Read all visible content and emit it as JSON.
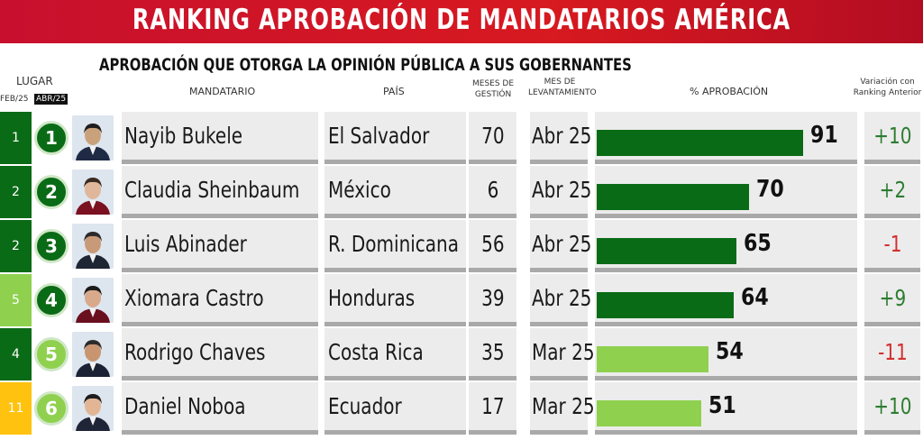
{
  "title": "RANKING APROBACIÓN DE MANDATARIOS AMÉRICA",
  "subtitle": "APROBACIÓN QUE OTORGA LA OPINIÓN PÚBLICA A SUS GOBERNANTES",
  "headers": {
    "lugar": "LUGAR",
    "prev_period": "FEB/25",
    "curr_period": "ABR/25",
    "mandatario": "MANDATARIO",
    "pais": "PAÍS",
    "meses_line1": "MESES DE",
    "meses_line2": "GESTIÓN",
    "mes_line1": "MES DE",
    "mes_line2": "LEVANTAMIENTO",
    "aprobacion": "% APROBACIÓN",
    "variacion_line1": "Variación con",
    "variacion_line2": "Ranking Anterior"
  },
  "colors": {
    "banner_red": "#c8102e",
    "dark_green": "#0a6b16",
    "light_green": "#8fd14f",
    "yellow": "#ffc20e",
    "positive": "#2e7d32",
    "negative": "#d32f2f"
  },
  "chart_data": {
    "type": "table",
    "value_max": 100,
    "rows": [
      {
        "prev_rank": "1",
        "rank": "1",
        "name": "Nayib Bukele",
        "country": "El Salvador",
        "months": "70",
        "survey": "Abr 25",
        "approval": 91,
        "approval_label": "91",
        "variation": "+10",
        "bar_color": "#0a6b16",
        "prev_color": "#0a6b16",
        "circle_color": "#0a6b16"
      },
      {
        "prev_rank": "2",
        "rank": "2",
        "name": "Claudia Sheinbaum",
        "country": "México",
        "months": "6",
        "survey": "Abr 25",
        "approval": 70,
        "approval_label": "70",
        "variation": "+2",
        "bar_color": "#0a6b16",
        "prev_color": "#0a6b16",
        "circle_color": "#0a6b16"
      },
      {
        "prev_rank": "2",
        "rank": "3",
        "name": "Luis Abinader",
        "country": "R. Dominicana",
        "months": "56",
        "survey": "Abr 25",
        "approval": 65,
        "approval_label": "65",
        "variation": "-1",
        "bar_color": "#0a6b16",
        "prev_color": "#0a6b16",
        "circle_color": "#0a6b16"
      },
      {
        "prev_rank": "5",
        "rank": "4",
        "name": "Xiomara Castro",
        "country": "Honduras",
        "months": "39",
        "survey": "Abr 25",
        "approval": 64,
        "approval_label": "64",
        "variation": "+9",
        "bar_color": "#0a6b16",
        "prev_color": "#8fd14f",
        "circle_color": "#0a6b16"
      },
      {
        "prev_rank": "4",
        "rank": "5",
        "name": "Rodrigo Chaves",
        "country": "Costa Rica",
        "months": "35",
        "survey": "Mar 25",
        "approval": 54,
        "approval_label": "54",
        "variation": "-11",
        "bar_color": "#8fd14f",
        "prev_color": "#0a6b16",
        "circle_color": "#8fd14f"
      },
      {
        "prev_rank": "11",
        "rank": "6",
        "name": "Daniel Noboa",
        "country": "Ecuador",
        "months": "17",
        "survey": "Mar 25",
        "approval": 51,
        "approval_label": "51",
        "variation": "+10",
        "bar_color": "#8fd14f",
        "prev_color": "#ffc20e",
        "circle_color": "#8fd14f"
      }
    ]
  }
}
